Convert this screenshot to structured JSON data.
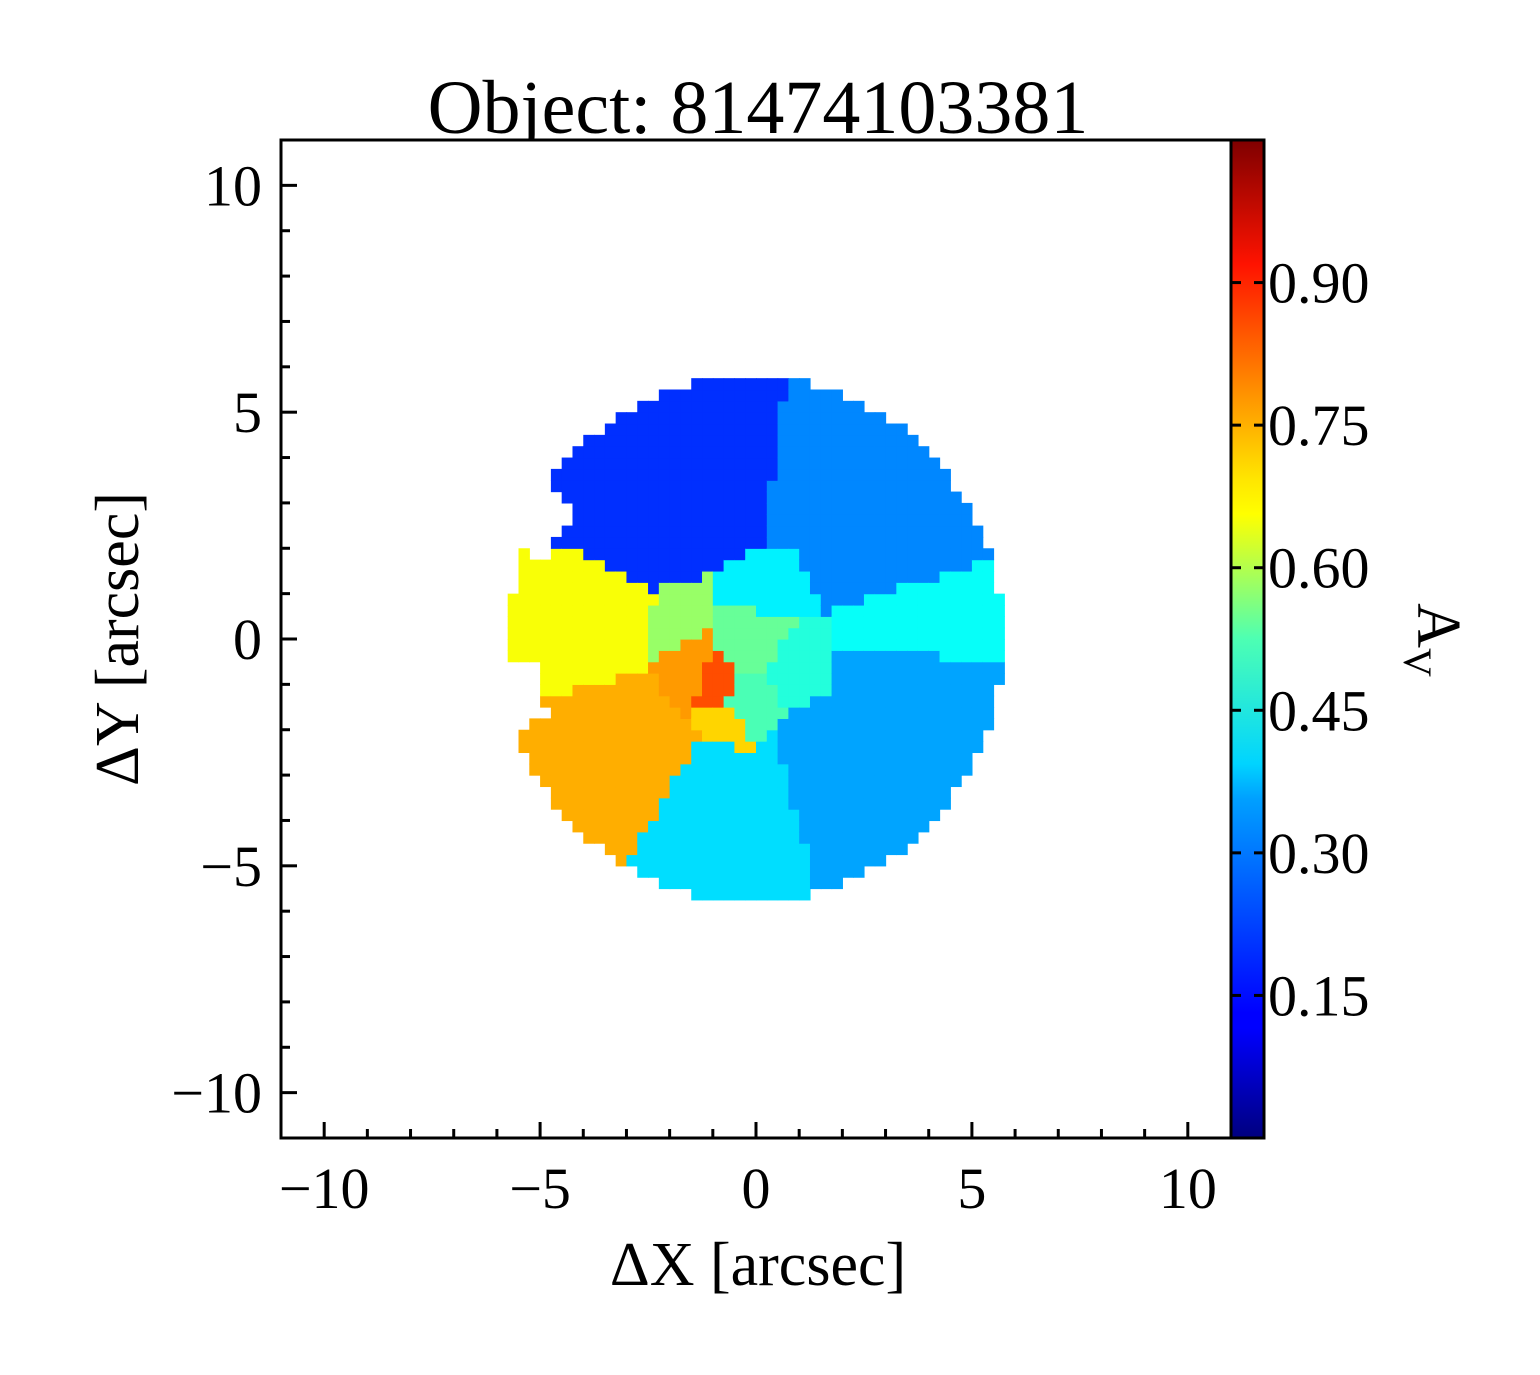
{
  "chart_data": {
    "type": "heatmap",
    "title": "Object: 81474103381",
    "xlabel": "ΔX [arcsec]",
    "ylabel": "ΔY [arcsec]",
    "xlim": [
      -11,
      11
    ],
    "ylim": [
      -11,
      11
    ],
    "x_ticks": [
      -10,
      -5,
      0,
      5,
      10
    ],
    "x_tick_labels": [
      "−10",
      "−5",
      "0",
      "5",
      "10"
    ],
    "y_ticks": [
      -10,
      -5,
      0,
      5,
      10
    ],
    "y_tick_labels": [
      "−10",
      "−5",
      "0",
      "5",
      "10"
    ],
    "colorbar": {
      "label": "A",
      "label_subscript": "V",
      "range": [
        0,
        1.05
      ],
      "ticks": [
        0.15,
        0.3,
        0.45,
        0.6,
        0.75,
        0.9
      ],
      "tick_labels": [
        "0.15",
        "0.30",
        "0.45",
        "0.60",
        "0.75",
        "0.90"
      ],
      "colormap": "jet"
    },
    "map": {
      "center": [
        -0.1,
        0
      ],
      "radius": 5.8,
      "cutout": {
        "angle_range": [
          -215,
          -160
        ],
        "from_radius": 5.0
      },
      "sectors": [
        {
          "from": -5,
          "to": 18,
          "value": 0.4
        },
        {
          "from": 18,
          "to": 82,
          "value": 0.27
        },
        {
          "from": 82,
          "to": 155,
          "value": 0.18
        },
        {
          "from": 155,
          "to": 195,
          "value": 0.65
        },
        {
          "from": 195,
          "to": 240,
          "value": 0.74
        },
        {
          "from": 240,
          "to": 285,
          "value": 0.36
        },
        {
          "from": 285,
          "to": 355,
          "value": 0.3
        }
      ],
      "core": [
        {
          "x": 0,
          "y": 0,
          "value": 0.5
        },
        {
          "x": -1.0,
          "y": -1.0,
          "value": 0.84
        },
        {
          "x": -1.5,
          "y": -0.8,
          "value": 0.76
        },
        {
          "x": -0.8,
          "y": -1.8,
          "value": 0.7
        },
        {
          "x": -2.2,
          "y": 0.5,
          "value": 0.55
        },
        {
          "x": 0.3,
          "y": 1.2,
          "value": 0.38
        },
        {
          "x": 0.9,
          "y": -0.6,
          "value": 0.43
        },
        {
          "x": -0.2,
          "y": -1.4,
          "value": 0.47
        }
      ]
    }
  }
}
